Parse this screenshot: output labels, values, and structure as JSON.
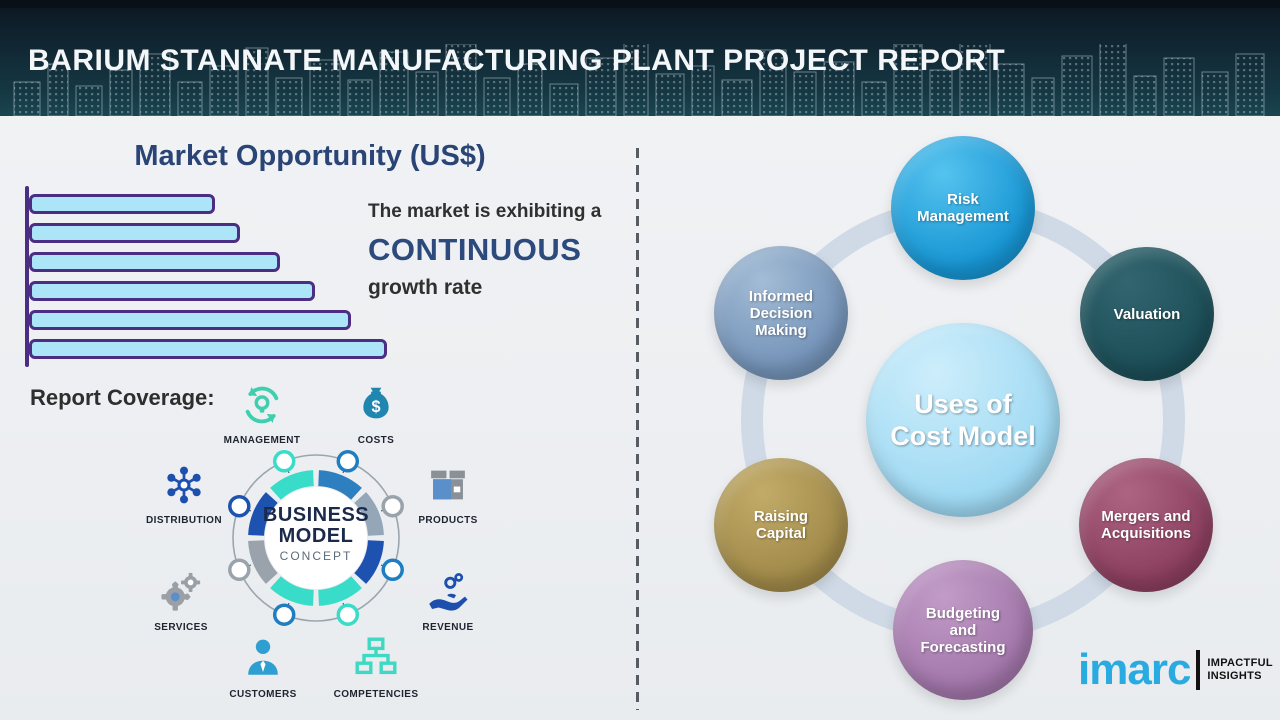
{
  "header": {
    "title": "BARIUM STANNATE MANUFACTURING PLANT PROJECT REPORT"
  },
  "market_opportunity": {
    "heading": "Market Opportunity (US$)",
    "growth_line1": "The market is exhibiting a",
    "growth_line2": "CONTINUOUS",
    "growth_line3": "growth rate"
  },
  "chart_data": {
    "type": "bar",
    "orientation": "horizontal",
    "title": "Market Opportunity (US$)",
    "categories": [
      "",
      "",
      "",
      "",
      "",
      ""
    ],
    "values": [
      52,
      59,
      70,
      80,
      90,
      100
    ],
    "value_note": "bars unlabeled; relative magnitudes estimated from bar lengths",
    "bar_fill": "#ace4f8",
    "bar_border": "#4b2e83",
    "axis_color": "#4b2e83"
  },
  "report_coverage": {
    "heading": "Report Coverage:",
    "center": {
      "line1": "BUSINESS",
      "line2": "MODEL",
      "line3": "CONCEPT"
    },
    "items": [
      {
        "label": "MANAGEMENT",
        "icon": "management-cycle-icon"
      },
      {
        "label": "COSTS",
        "icon": "money-bag-icon"
      },
      {
        "label": "DISTRIBUTION",
        "icon": "network-hub-icon"
      },
      {
        "label": "PRODUCTS",
        "icon": "product-box-icon"
      },
      {
        "label": "SERVICES",
        "icon": "gears-icon"
      },
      {
        "label": "REVENUE",
        "icon": "hand-coins-icon"
      },
      {
        "label": "CUSTOMERS",
        "icon": "person-icon"
      },
      {
        "label": "COMPETENCIES",
        "icon": "org-chart-icon"
      }
    ]
  },
  "uses_of_cost_model": {
    "center": {
      "line1": "Uses of",
      "line2": "Cost Model",
      "color": "#9fd9f3",
      "highlight": "#cdeefb"
    },
    "items": [
      {
        "label": "Risk Management",
        "color": "#1795d3",
        "highlight": "#55c3ef"
      },
      {
        "label": "Informed Decision Making",
        "color": "#7493b8",
        "highlight": "#a3bcd6"
      },
      {
        "label": "Valuation",
        "color": "#1c4e58",
        "highlight": "#32656f"
      },
      {
        "label": "Raising Capital",
        "color": "#a18a49",
        "highlight": "#c2ab69"
      },
      {
        "label": "Mergers and Acquisitions",
        "color": "#8c3f5f",
        "highlight": "#ad6483"
      },
      {
        "label": "Budgeting and Forecasting",
        "color": "#a276aa",
        "highlight": "#c29cc8"
      }
    ],
    "ring_color": "#cfdae6"
  },
  "logo": {
    "brand": "imarc",
    "tagline_line1": "IMPACTFUL",
    "tagline_line2": "INSIGHTS",
    "brand_color": "#29abe2"
  },
  "palette": {
    "header_bg_top": "#0b1620",
    "header_bg_bottom": "#1a4550",
    "heading_navy": "#2a4475",
    "teal_accent": "#38dcc8",
    "blue_accent": "#1f7ec2",
    "dark_blue_accent": "#1d52b0",
    "gray_accent": "#9aa3ab"
  }
}
